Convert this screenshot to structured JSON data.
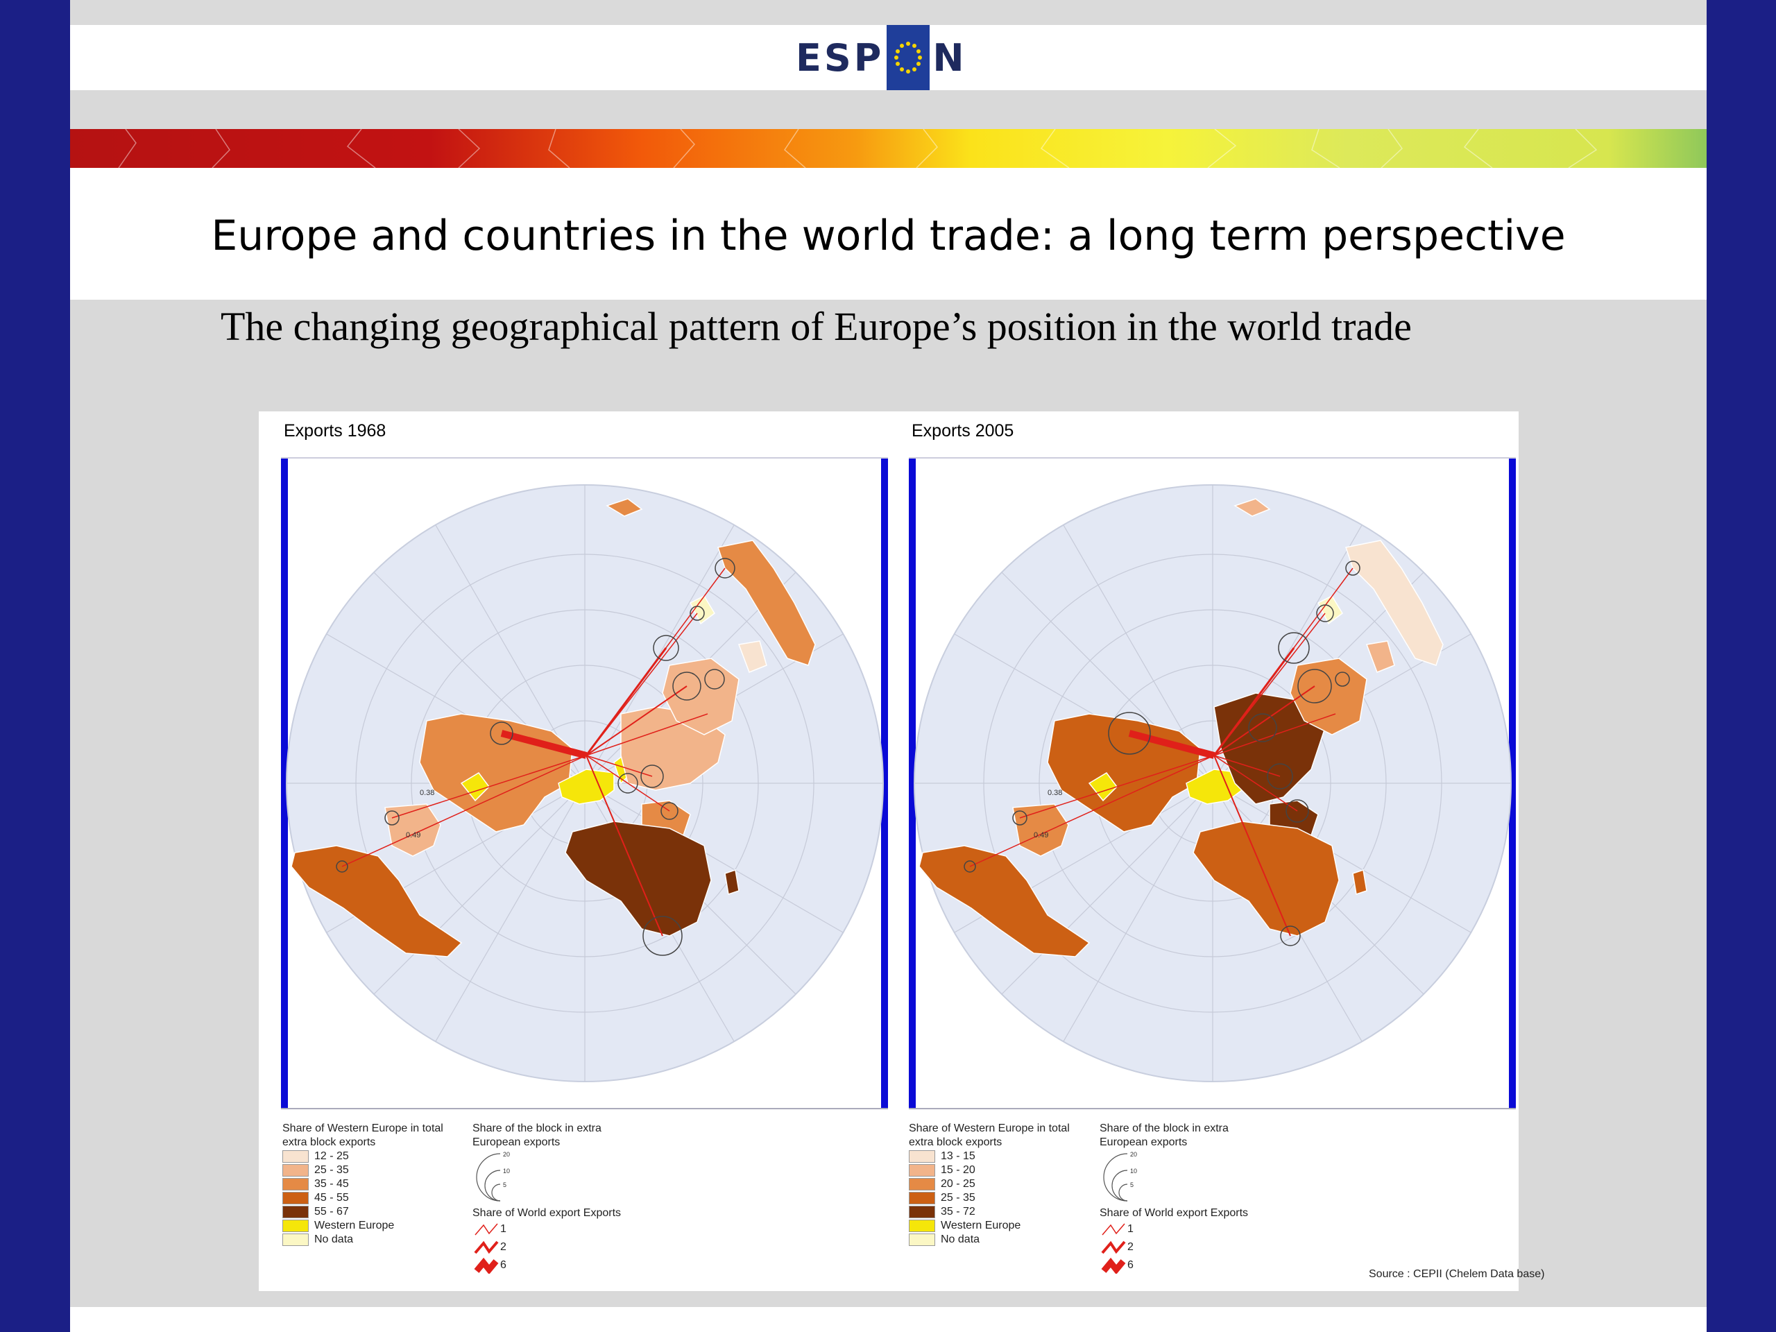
{
  "slide": {
    "logo": "ESPON",
    "title": "Europe and countries in the world trade: a long term perspective",
    "subtitle": "The changing geographical pattern of Europe’s position in the world trade"
  },
  "maps": [
    {
      "label": "Exports 1968",
      "legend": {
        "share_title": "Share of Western Europe in total extra block exports",
        "classes": [
          "12 - 25",
          "25 - 35",
          "35 - 45",
          "45 - 55",
          "55 - 67"
        ],
        "class_colors": [
          "#f8e3d0",
          "#f2b48a",
          "#e58a45",
          "#cc6014",
          "#7a3209"
        ],
        "western_europe": "Western Europe",
        "no_data": "No data",
        "block_title": "Share of the block in extra European exports",
        "circle_scale": [
          "20",
          "10",
          "5"
        ],
        "flow_title": "Share of World export Exports",
        "flow_scale": [
          "1",
          "2",
          "6"
        ]
      },
      "flow_labels": [
        "0.38",
        "0.49"
      ]
    },
    {
      "label": "Exports 2005",
      "legend": {
        "share_title": "Share of Western Europe in total extra block exports",
        "classes": [
          "13 - 15",
          "15 - 20",
          "20 - 25",
          "25 - 35",
          "35 - 72"
        ],
        "class_colors": [
          "#f8e3d0",
          "#f2b48a",
          "#e58a45",
          "#cc6014",
          "#7a3209"
        ],
        "western_europe": "Western Europe",
        "no_data": "No data",
        "block_title": "Share of the block in extra European exports",
        "circle_scale": [
          "20",
          "10",
          "5"
        ],
        "flow_title": "Share of World export Exports",
        "flow_scale": [
          "1",
          "2",
          "6"
        ]
      },
      "flow_labels": [
        "0.38",
        "0.49"
      ]
    }
  ],
  "source": "Source : CEPII (Chelem Data base)",
  "colors": {
    "frame": "#1b1f86",
    "western_europe": "#f5e60a",
    "no_data": "#fbf7c4",
    "ocean": "#e3e8f4",
    "flow": "#e0201a"
  }
}
